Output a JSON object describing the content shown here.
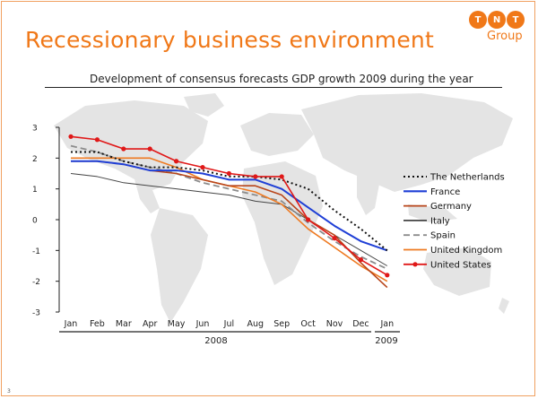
{
  "slide": {
    "title": "Recessionary business environment",
    "page_number": "3"
  },
  "logo": {
    "letters": [
      "T",
      "N",
      "T"
    ],
    "group": "Group"
  },
  "colors": {
    "accent": "#f07818",
    "netherlands": "#111111",
    "france": "#1f3fd6",
    "germany": "#b8451a",
    "italy": "#444444",
    "spain": "#8c8c8c",
    "united_kingdom": "#ee7a22",
    "united_states": "#e01818"
  },
  "chart_data": {
    "type": "line",
    "title": "Development of consensus forecasts GDP growth 2009 during the year",
    "xlabel": "",
    "ylabel": "",
    "categories": [
      "Jan",
      "Feb",
      "Mar",
      "Apr",
      "May",
      "Jun",
      "Jul",
      "Aug",
      "Sep",
      "Oct",
      "Nov",
      "Dec",
      "Jan"
    ],
    "year_labels": [
      "2008",
      "2009"
    ],
    "ylim": [
      -3,
      3
    ],
    "yticks": [
      "3",
      "2",
      "1",
      "0",
      "-1",
      "-2",
      "-3"
    ],
    "grid": false,
    "legend_position": "right",
    "series": [
      {
        "name": "The Netherlands",
        "style": "dotted",
        "values": [
          2.2,
          2.2,
          1.9,
          1.7,
          1.7,
          1.6,
          1.4,
          1.4,
          1.3,
          1.0,
          0.3,
          -0.3,
          -1.0
        ]
      },
      {
        "name": "France",
        "style": "solid",
        "values": [
          1.9,
          1.9,
          1.8,
          1.6,
          1.6,
          1.5,
          1.3,
          1.3,
          1.0,
          0.4,
          -0.2,
          -0.7,
          -1.0
        ]
      },
      {
        "name": "Germany",
        "style": "solid",
        "values": [
          1.9,
          1.9,
          1.8,
          1.6,
          1.5,
          1.3,
          1.1,
          1.1,
          0.8,
          0.0,
          -0.5,
          -1.4,
          -2.2
        ]
      },
      {
        "name": "Italy",
        "style": "solid",
        "values": [
          1.5,
          1.4,
          1.2,
          1.1,
          1.0,
          0.9,
          0.8,
          0.6,
          0.5,
          0.0,
          -0.5,
          -1.0,
          -1.5
        ]
      },
      {
        "name": "Spain",
        "style": "dashed",
        "values": [
          2.4,
          2.2,
          1.9,
          1.7,
          1.5,
          1.2,
          1.0,
          0.8,
          0.6,
          -0.1,
          -0.7,
          -1.2,
          -1.6
        ]
      },
      {
        "name": "United Kingdom",
        "style": "solid",
        "values": [
          2.0,
          2.0,
          2.0,
          2.0,
          1.7,
          1.3,
          1.1,
          0.9,
          0.5,
          -0.3,
          -0.9,
          -1.5,
          -2.0
        ]
      },
      {
        "name": "United States",
        "style": "solid-markers",
        "values": [
          2.7,
          2.6,
          2.3,
          2.3,
          1.9,
          1.7,
          1.5,
          1.4,
          1.4,
          0.0,
          -0.6,
          -1.3,
          -1.8
        ]
      }
    ]
  }
}
